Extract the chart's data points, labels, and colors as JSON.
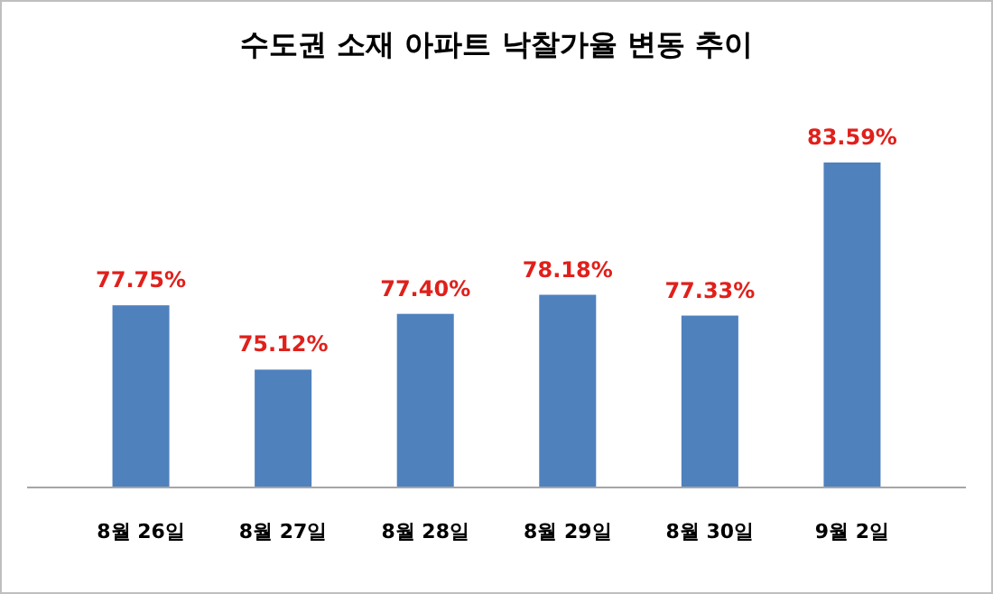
{
  "chart_data": {
    "type": "bar",
    "title": "수도권 소재 아파트 낙찰가율 변동 추이",
    "categories": [
      "8월 26일",
      "8월 27일",
      "8월 28일",
      "8월 29일",
      "8월 30일",
      "9월 2일"
    ],
    "values": [
      77.75,
      75.12,
      77.4,
      78.18,
      77.33,
      83.59
    ],
    "value_labels": [
      "77.75%",
      "75.12%",
      "77.40%",
      "78.18%",
      "77.33%",
      "83.59%"
    ],
    "color": "#4f81bd",
    "ylim": [
      70.3,
      83.59
    ],
    "tick_labels": "x"
  }
}
